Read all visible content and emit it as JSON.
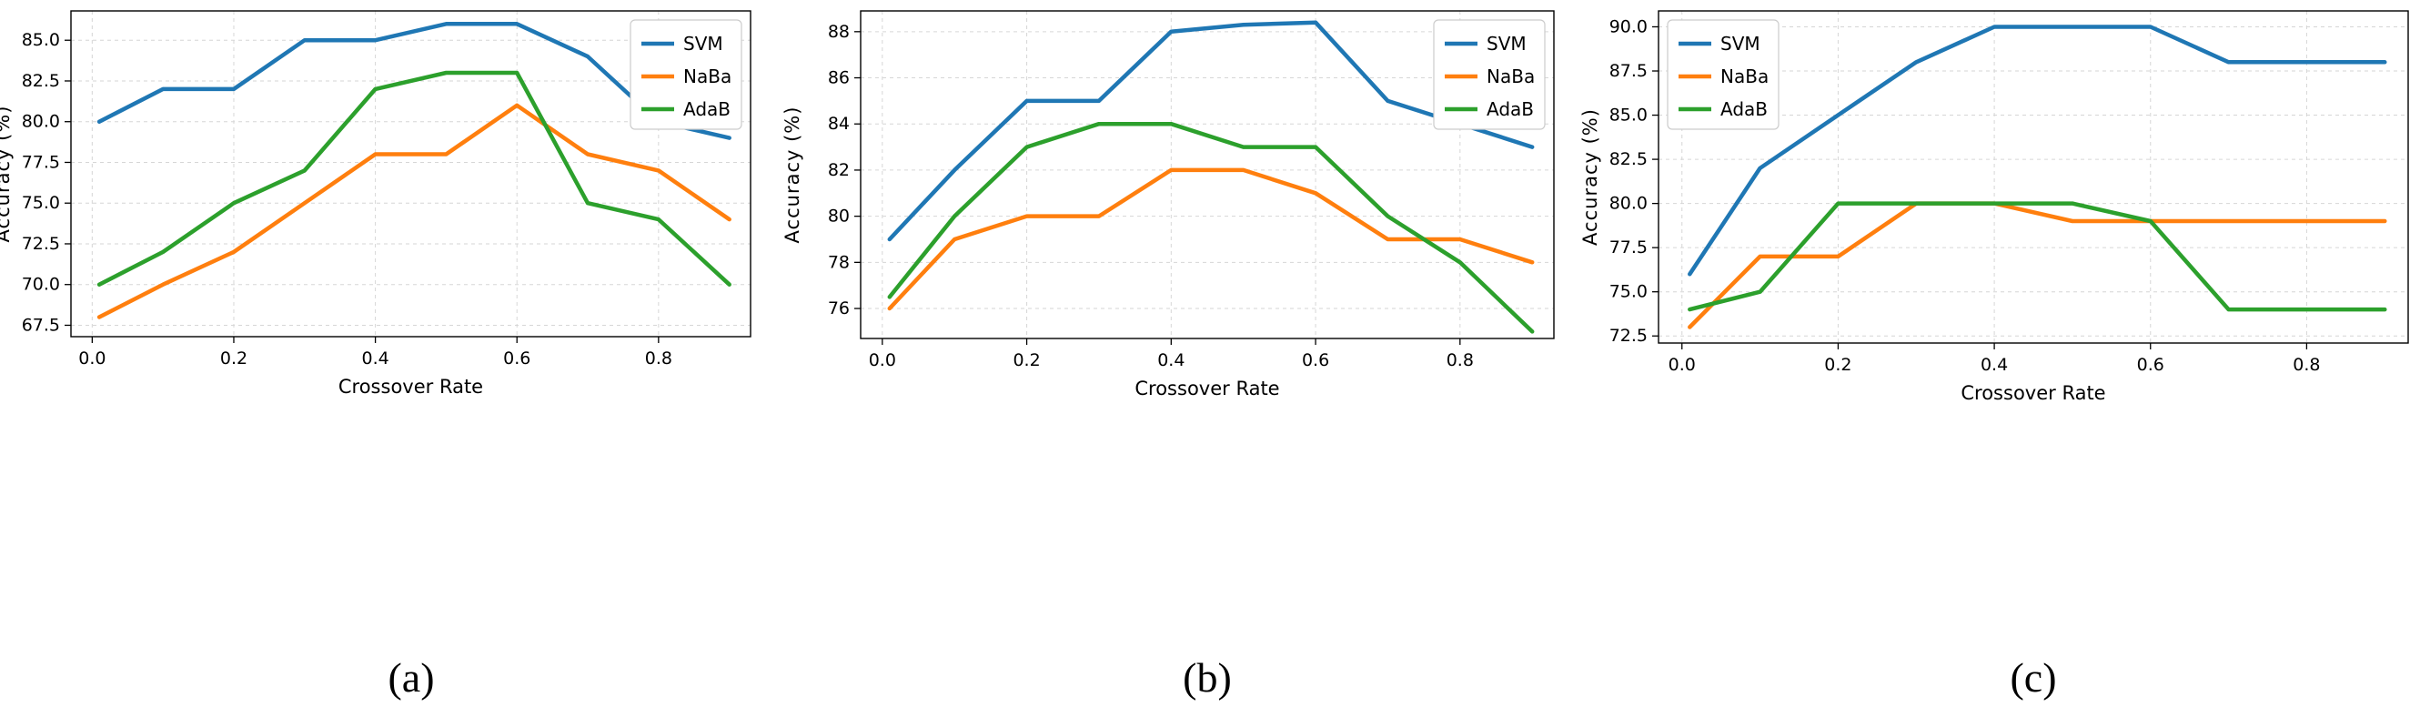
{
  "colors": {
    "SVM": "#1f77b4",
    "NaBa": "#ff7f0e",
    "AdaB": "#2ca02c"
  },
  "chart_data": [
    {
      "type": "line",
      "caption": "(a)",
      "xlabel": "Crossover Rate",
      "ylabel": "Accuracy (%)",
      "xlim": [
        -0.03,
        0.93
      ],
      "ylim": [
        66.8,
        86.8
      ],
      "xticks": [
        0.0,
        0.2,
        0.4,
        0.6,
        0.8
      ],
      "xtick_labels": [
        "0.0",
        "0.2",
        "0.4",
        "0.6",
        "0.8"
      ],
      "yticks": [
        67.5,
        70.0,
        72.5,
        75.0,
        77.5,
        80.0,
        82.5,
        85.0
      ],
      "ytick_labels": [
        "67.5",
        "70.0",
        "72.5",
        "75.0",
        "77.5",
        "80.0",
        "82.5",
        "85.0"
      ],
      "legend_position": "top-right",
      "grid": true,
      "x": [
        0.01,
        0.1,
        0.2,
        0.3,
        0.4,
        0.5,
        0.6,
        0.7,
        0.8,
        0.9
      ],
      "series": [
        {
          "name": "SVM",
          "values": [
            80,
            82,
            82,
            85,
            85,
            86,
            86,
            84,
            80,
            79
          ]
        },
        {
          "name": "NaBa",
          "values": [
            68,
            70,
            72,
            75,
            78,
            78,
            81,
            78,
            77,
            74
          ]
        },
        {
          "name": "AdaB",
          "values": [
            70,
            72,
            75,
            77,
            82,
            83,
            83,
            75,
            74,
            70
          ]
        }
      ]
    },
    {
      "type": "line",
      "caption": "(b)",
      "xlabel": "Crossover Rate",
      "ylabel": "Accuracy (%)",
      "xlim": [
        -0.03,
        0.93
      ],
      "ylim": [
        74.7,
        88.9
      ],
      "xticks": [
        0.0,
        0.2,
        0.4,
        0.6,
        0.8
      ],
      "xtick_labels": [
        "0.0",
        "0.2",
        "0.4",
        "0.6",
        "0.8"
      ],
      "yticks": [
        76,
        78,
        80,
        82,
        84,
        86,
        88
      ],
      "ytick_labels": [
        "76",
        "78",
        "80",
        "82",
        "84",
        "86",
        "88"
      ],
      "legend_position": "top-right",
      "grid": true,
      "x": [
        0.01,
        0.1,
        0.2,
        0.3,
        0.4,
        0.5,
        0.6,
        0.7,
        0.8,
        0.9
      ],
      "series": [
        {
          "name": "SVM",
          "values": [
            79,
            82,
            85,
            85,
            88,
            88.3,
            88.4,
            85,
            84,
            83
          ]
        },
        {
          "name": "NaBa",
          "values": [
            76,
            79,
            80,
            80,
            82,
            82,
            81,
            79,
            79,
            78
          ]
        },
        {
          "name": "AdaB",
          "values": [
            76.5,
            80,
            83,
            84,
            84,
            83,
            83,
            80,
            78,
            75
          ]
        }
      ]
    },
    {
      "type": "line",
      "caption": "(c)",
      "xlabel": "Crossover Rate",
      "ylabel": "Accuracy (%)",
      "xlim": [
        -0.03,
        0.93
      ],
      "ylim": [
        72.1,
        90.9
      ],
      "xticks": [
        0.0,
        0.2,
        0.4,
        0.6,
        0.8
      ],
      "xtick_labels": [
        "0.0",
        "0.2",
        "0.4",
        "0.6",
        "0.8"
      ],
      "yticks": [
        72.5,
        75.0,
        77.5,
        80.0,
        82.5,
        85.0,
        87.5,
        90.0
      ],
      "ytick_labels": [
        "72.5",
        "75.0",
        "77.5",
        "80.0",
        "82.5",
        "85.0",
        "87.5",
        "90.0"
      ],
      "legend_position": "top-left",
      "grid": true,
      "x": [
        0.01,
        0.1,
        0.2,
        0.3,
        0.4,
        0.5,
        0.6,
        0.7,
        0.8,
        0.9
      ],
      "series": [
        {
          "name": "SVM",
          "values": [
            76,
            82,
            85,
            88,
            90,
            90,
            90,
            88,
            88,
            88
          ]
        },
        {
          "name": "NaBa",
          "values": [
            73,
            77,
            77,
            80,
            80,
            79,
            79,
            79,
            79,
            79
          ]
        },
        {
          "name": "AdaB",
          "values": [
            74,
            75,
            80,
            80,
            80,
            80,
            79,
            74,
            74,
            74
          ]
        }
      ]
    }
  ]
}
